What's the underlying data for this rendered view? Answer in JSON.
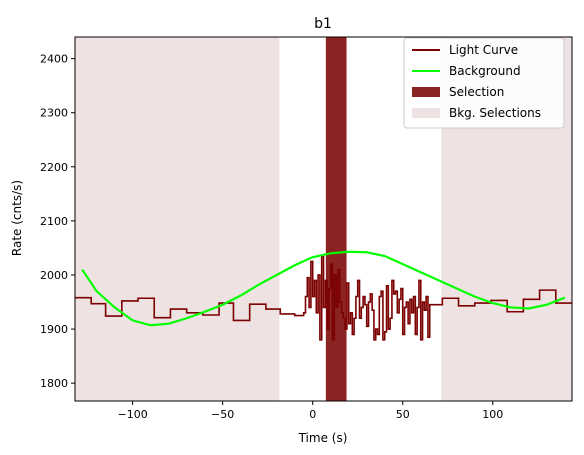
{
  "chart_data": {
    "type": "line",
    "title": "b1",
    "xlabel": "Time (s)",
    "ylabel": "Rate (cnts/s)",
    "xlim": [
      -132,
      144
    ],
    "ylim": [
      1767,
      2440
    ],
    "xticks": [
      -100,
      -50,
      0,
      50,
      100
    ],
    "yticks": [
      1800,
      1900,
      2000,
      2100,
      2200,
      2300,
      2400
    ],
    "legend_position": "top-right",
    "grid": false,
    "legend": [
      {
        "label": "Light Curve",
        "kind": "line",
        "color": "#7b0000"
      },
      {
        "label": "Background",
        "kind": "line",
        "color": "#00ff00"
      },
      {
        "label": "Selection",
        "kind": "patch",
        "color": "#8b2323"
      },
      {
        "label": "Bkg. Selections",
        "kind": "patch",
        "color": "#efe2e2"
      }
    ],
    "selection": {
      "x0": 7.3,
      "x1": 18.8,
      "color": "#8b2323"
    },
    "bkg_selections": [
      {
        "x0": -132,
        "x1": -18.5
      },
      {
        "x0": 71.5,
        "x1": 144
      }
    ],
    "bkg_color": "#efe2e2",
    "light_curve": {
      "color": "#7b0000",
      "points": [
        [
          -132,
          1958
        ],
        [
          -123,
          1947
        ],
        [
          -115,
          1924
        ],
        [
          -106,
          1952
        ],
        [
          -97,
          1957
        ],
        [
          -88,
          1921
        ],
        [
          -79,
          1937
        ],
        [
          -70,
          1930
        ],
        [
          -61,
          1926
        ],
        [
          -52,
          1948
        ],
        [
          -44,
          1916
        ],
        [
          -35,
          1946
        ],
        [
          -26,
          1937
        ],
        [
          -18,
          1928
        ],
        [
          -10,
          1925
        ],
        [
          -5,
          1930
        ],
        [
          -4,
          1960
        ],
        [
          -3,
          1995
        ],
        [
          -2,
          1940
        ],
        [
          -1,
          2025
        ],
        [
          0,
          1960
        ],
        [
          1,
          1990
        ],
        [
          2,
          1930
        ],
        [
          3,
          2000
        ],
        [
          4,
          1880
        ],
        [
          5,
          2035
        ],
        [
          6,
          1940
        ],
        [
          7,
          1990
        ],
        [
          8,
          1900
        ],
        [
          9,
          1975
        ],
        [
          10,
          2020
        ],
        [
          11,
          1880
        ],
        [
          12,
          2000
        ],
        [
          13,
          1940
        ],
        [
          14,
          2010
        ],
        [
          15,
          1950
        ],
        [
          16,
          1930
        ],
        [
          17,
          1920
        ],
        [
          18,
          1900
        ],
        [
          19,
          1985
        ],
        [
          20,
          1910
        ],
        [
          21,
          1930
        ],
        [
          22,
          1890
        ],
        [
          23,
          1920
        ],
        [
          24,
          1960
        ],
        [
          25,
          1990
        ],
        [
          26,
          1920
        ],
        [
          27,
          1940
        ],
        [
          28,
          1960
        ],
        [
          29,
          1945
        ],
        [
          30,
          1905
        ],
        [
          31,
          1950
        ],
        [
          32,
          1965
        ],
        [
          33,
          1935
        ],
        [
          34,
          1880
        ],
        [
          35,
          1900
        ],
        [
          36,
          1890
        ],
        [
          37,
          1960
        ],
        [
          38,
          1970
        ],
        [
          39,
          1880
        ],
        [
          40,
          1895
        ],
        [
          41,
          1980
        ],
        [
          42,
          1900
        ],
        [
          43,
          1920
        ],
        [
          44,
          1990
        ],
        [
          45,
          1965
        ],
        [
          46,
          1970
        ],
        [
          47,
          1930
        ],
        [
          48,
          1955
        ],
        [
          49,
          1975
        ],
        [
          50,
          1890
        ],
        [
          51,
          1940
        ],
        [
          52,
          1950
        ],
        [
          53,
          1910
        ],
        [
          54,
          1955
        ],
        [
          55,
          1930
        ],
        [
          56,
          1960
        ],
        [
          57,
          1890
        ],
        [
          58,
          1940
        ],
        [
          59,
          1990
        ],
        [
          60,
          1880
        ],
        [
          61,
          1950
        ],
        [
          62,
          1935
        ],
        [
          63,
          1960
        ],
        [
          64,
          1885
        ],
        [
          65,
          1945
        ],
        [
          72,
          1957
        ],
        [
          81,
          1943
        ],
        [
          90,
          1948
        ],
        [
          99,
          1953
        ],
        [
          108,
          1932
        ],
        [
          117,
          1955
        ],
        [
          126,
          1972
        ],
        [
          135,
          1948
        ],
        [
          144,
          1948
        ]
      ]
    },
    "background": {
      "color": "#00ff00",
      "points": [
        [
          -128,
          2010
        ],
        [
          -120,
          1970
        ],
        [
          -110,
          1940
        ],
        [
          -100,
          1916
        ],
        [
          -90,
          1907
        ],
        [
          -80,
          1910
        ],
        [
          -70,
          1920
        ],
        [
          -60,
          1932
        ],
        [
          -50,
          1945
        ],
        [
          -40,
          1962
        ],
        [
          -30,
          1982
        ],
        [
          -20,
          2000
        ],
        [
          -10,
          2018
        ],
        [
          0,
          2033
        ],
        [
          10,
          2040
        ],
        [
          20,
          2043
        ],
        [
          30,
          2042
        ],
        [
          40,
          2035
        ],
        [
          50,
          2020
        ],
        [
          60,
          2005
        ],
        [
          70,
          1990
        ],
        [
          80,
          1975
        ],
        [
          90,
          1960
        ],
        [
          100,
          1948
        ],
        [
          110,
          1940
        ],
        [
          120,
          1938
        ],
        [
          130,
          1945
        ],
        [
          140,
          1958
        ]
      ]
    }
  }
}
